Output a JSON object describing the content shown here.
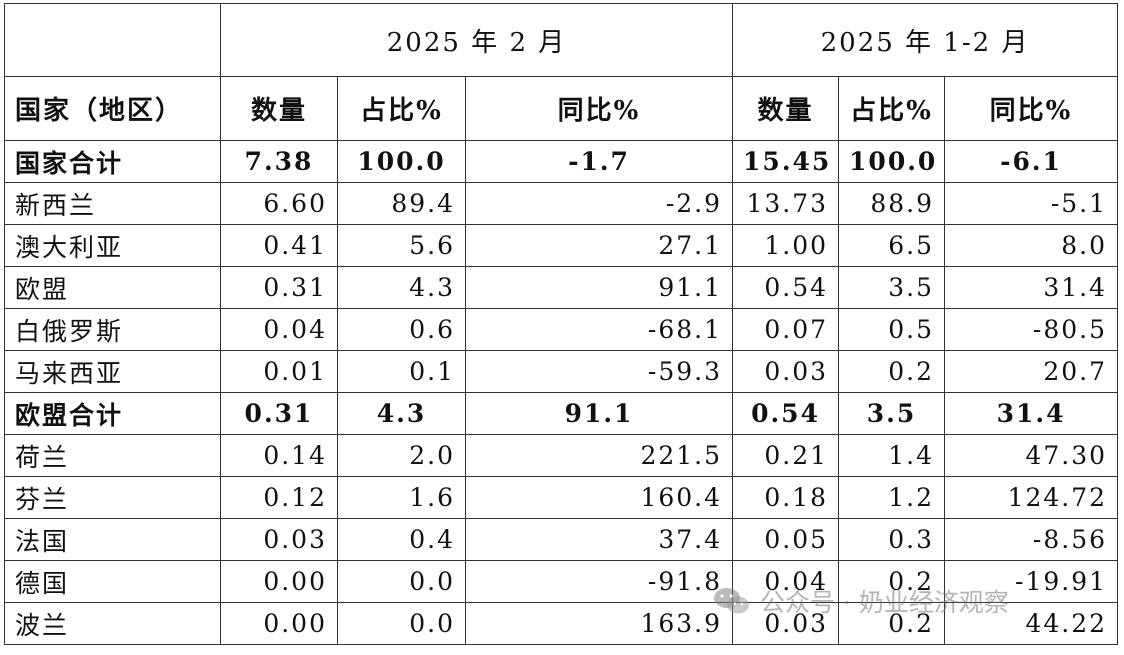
{
  "table": {
    "period_headers": [
      "2025 年 2 月",
      "2025 年 1-2 月"
    ],
    "column_headers": [
      "国家（地区）",
      "数量",
      "占比%",
      "同比%",
      "数量",
      "占比%",
      "同比%"
    ],
    "rows": [
      {
        "type": "total",
        "cells": [
          "国家合计",
          "7.38",
          "100.0",
          "-1.7",
          "15.45",
          "100.0",
          "-6.1"
        ]
      },
      {
        "type": "body",
        "cells": [
          "新西兰",
          "6.60",
          "89.4",
          "-2.9",
          "13.73",
          "88.9",
          "-5.1"
        ]
      },
      {
        "type": "body",
        "cells": [
          "澳大利亚",
          "0.41",
          "5.6",
          "27.1",
          "1.00",
          "6.5",
          "8.0"
        ]
      },
      {
        "type": "body",
        "cells": [
          "欧盟",
          "0.31",
          "4.3",
          "91.1",
          "0.54",
          "3.5",
          "31.4"
        ]
      },
      {
        "type": "body",
        "cells": [
          "白俄罗斯",
          "0.04",
          "0.6",
          "-68.1",
          "0.07",
          "0.5",
          "-80.5"
        ]
      },
      {
        "type": "body",
        "cells": [
          "马来西亚",
          "0.01",
          "0.1",
          "-59.3",
          "0.03",
          "0.2",
          "20.7"
        ]
      },
      {
        "type": "total",
        "cells": [
          "欧盟合计",
          "0.31",
          "4.3",
          "91.1",
          "0.54",
          "3.5",
          "31.4"
        ]
      },
      {
        "type": "body",
        "cells": [
          "荷兰",
          "0.14",
          "2.0",
          "221.5",
          "0.21",
          "1.4",
          "47.30"
        ]
      },
      {
        "type": "body",
        "cells": [
          "芬兰",
          "0.12",
          "1.6",
          "160.4",
          "0.18",
          "1.2",
          "124.72"
        ]
      },
      {
        "type": "body",
        "cells": [
          "法国",
          "0.03",
          "0.4",
          "37.4",
          "0.05",
          "0.3",
          "-8.56"
        ]
      },
      {
        "type": "body",
        "cells": [
          "德国",
          "0.00",
          "0.0",
          "-91.8",
          "0.04",
          "0.2",
          "-19.91"
        ]
      },
      {
        "type": "body",
        "cells": [
          "波兰",
          "0.00",
          "0.0",
          "163.9",
          "0.03",
          "0.2",
          "44.22"
        ]
      }
    ]
  },
  "watermark": {
    "icon": "wechat-icon",
    "text": "公众号 · 奶业经济观察"
  }
}
